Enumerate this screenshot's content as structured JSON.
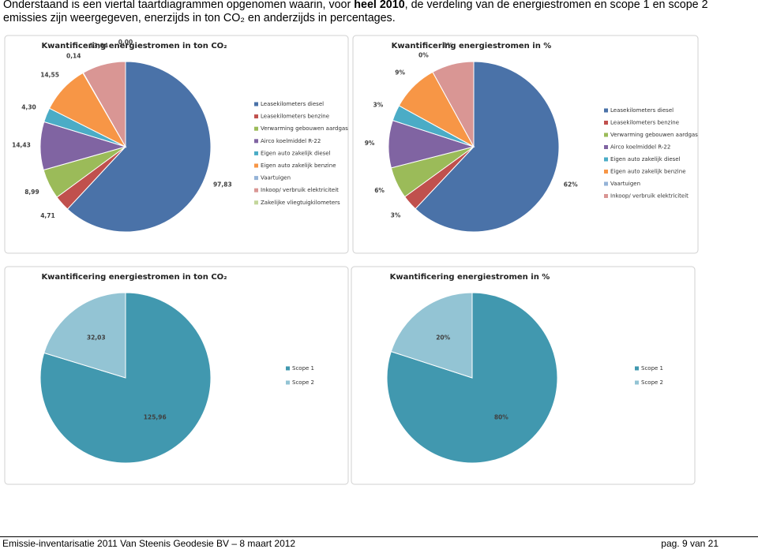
{
  "intro": {
    "text_1": "Onderstaand is een viertal taartdiagrammen opgenomen waarin, voor",
    "bold": "heel 2010",
    "text_2": ", de verdeling van de energiestromen en scope 1 en scope 2 emissies zijn weergegeven, enerzijds in ton CO₂ en anderzijds in percentages."
  },
  "chart_data": [
    {
      "type": "pie",
      "title": "Kwantificering energiestromen in ton CO₂",
      "label_position": "outside",
      "legend": "right",
      "categories": [
        "Leasekilometers diesel",
        "Leasekilometers benzine",
        "Verwarming gebouwen aardgas",
        "Airco koelmiddel R-22",
        "Eigen auto zakelijk diesel",
        "Eigen auto zakelijk benzine",
        "Vaartuigen",
        "Inkoop/ verbruik elektriciteit",
        "Zakelijke vliegtuigkilometers"
      ],
      "values": [
        97.83,
        4.71,
        8.99,
        14.43,
        4.3,
        14.55,
        0.14,
        13.04,
        0.0
      ],
      "value_labels": [
        "97,83",
        "4,71",
        "8,99",
        "14,43",
        "4,30",
        "14,55",
        "0,14",
        "13,04",
        "0,00"
      ],
      "colors": [
        "#4a72a8",
        "#c0504d",
        "#9bbb59",
        "#8064a2",
        "#4bacc6",
        "#f79646",
        "#95b3d7",
        "#d99694",
        "#c3d69b"
      ]
    },
    {
      "type": "pie",
      "title": "Kwantificering energiestromen in %",
      "label_position": "outside",
      "legend": "right",
      "categories": [
        "Leasekilometers diesel",
        "Leasekilometers benzine",
        "Verwarming gebouwen aardgas",
        "Airco koelmiddel R-22",
        "Eigen auto zakelijk diesel",
        "Eigen auto zakelijk benzine",
        "Vaartuigen",
        "Inkoop/ verbruik elektriciteit"
      ],
      "values": [
        62,
        3,
        6,
        9,
        3,
        9,
        0,
        8
      ],
      "value_labels": [
        "62%",
        "3%",
        "6%",
        "9%",
        "3%",
        "9%",
        "0%",
        "8%"
      ],
      "colors": [
        "#4a72a8",
        "#c0504d",
        "#9bbb59",
        "#8064a2",
        "#4bacc6",
        "#f79646",
        "#95b3d7",
        "#d99694"
      ]
    },
    {
      "type": "pie",
      "title": "Kwantificering energiestromen in ton CO₂",
      "label_position": "inside",
      "legend": "right",
      "categories": [
        "Scope 1",
        "Scope 2"
      ],
      "values": [
        125.96,
        32.03
      ],
      "value_labels": [
        "125,96",
        "32,03"
      ],
      "colors": [
        "#4198af",
        "#93c4d4"
      ]
    },
    {
      "type": "pie",
      "title": "Kwantificering energiestromen in %",
      "label_position": "inside",
      "legend": "right",
      "categories": [
        "Scope 1",
        "Scope 2"
      ],
      "values": [
        80,
        20
      ],
      "value_labels": [
        "80%",
        "20%"
      ],
      "colors": [
        "#4198af",
        "#93c4d4"
      ]
    }
  ],
  "footer": {
    "left": "Emissie-inventarisatie 2011 Van Steenis Geodesie BV – 8 maart 2012",
    "right": "pag. 9 van 21"
  }
}
